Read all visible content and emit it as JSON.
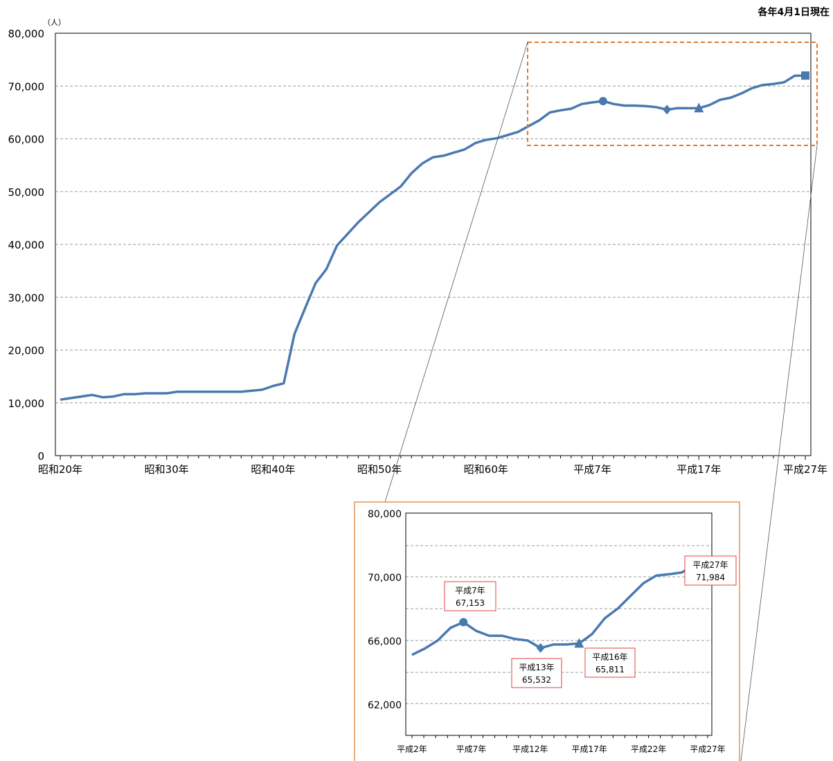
{
  "note": "各年4月1日現在",
  "colors": {
    "series": "#4a79b0",
    "grid": "#999999",
    "highlight": "#e0782a",
    "label_border": "#e04040"
  },
  "chart_data": [
    {
      "type": "line",
      "unit_label": "（人）",
      "ylim": [
        0,
        80000
      ],
      "yticks": [
        0,
        10000,
        20000,
        30000,
        40000,
        50000,
        60000,
        70000,
        80000
      ],
      "ytick_labels": [
        "0",
        "10,000",
        "20,000",
        "30,000",
        "40,000",
        "50,000",
        "60,000",
        "70,000",
        "80,000"
      ],
      "grid": "dashed horizontal",
      "x_tick_labels": [
        "昭和20年",
        "昭和30年",
        "昭和40年",
        "昭和50年",
        "昭和60年",
        "平成7年",
        "平成17年",
        "平成27年"
      ],
      "x_tick_index": [
        0,
        10,
        20,
        30,
        40,
        50,
        60,
        70
      ],
      "series": [
        {
          "values": [
            10600,
            10900,
            11200,
            11500,
            11050,
            11200,
            11650,
            11650,
            11800,
            11800,
            11800,
            12100,
            12100,
            12100,
            12100,
            12100,
            12100,
            12100,
            12300,
            12500,
            13200,
            13700,
            23000,
            27900,
            32700,
            35300,
            39800,
            42000,
            44200,
            46100,
            48000,
            49500,
            51000,
            53500,
            55300,
            56500,
            56800,
            57400,
            58000,
            59200,
            59800,
            60100,
            60700,
            61300,
            62400,
            63500,
            65000,
            65400,
            65700,
            66600,
            66900,
            67153,
            66600,
            66300,
            66300,
            66200,
            66000,
            65532,
            65811,
            65800,
            65811,
            66400,
            67400,
            67800,
            68600,
            69600,
            70200,
            70400,
            70700,
            71950,
            71984
          ]
        }
      ],
      "markers": [
        {
          "index": 51,
          "shape": "circle"
        },
        {
          "index": 57,
          "shape": "diamond"
        },
        {
          "index": 60,
          "shape": "triangle"
        },
        {
          "index": 70,
          "shape": "square"
        }
      ]
    },
    {
      "type": "line",
      "yticks": [
        62000,
        66000,
        70000,
        80000
      ],
      "ytick_labels": [
        "62,000",
        "66,000",
        "70,000",
        "80,000"
      ],
      "x_tick_labels": [
        "平成2年",
        "平成7年",
        "平成12年",
        "平成17年",
        "平成22年",
        "平成27年"
      ],
      "series": [
        {
          "values": [
            65100,
            65500,
            66000,
            66800,
            67153,
            66600,
            66300,
            66300,
            66100,
            66000,
            65532,
            65750,
            65750,
            65811,
            66400,
            67400,
            68000,
            68800,
            69600,
            70200,
            70400,
            70700,
            71950,
            71984
          ]
        }
      ],
      "callouts": [
        {
          "title": "平成7年",
          "value": "67,153"
        },
        {
          "title": "平成13年",
          "value": "65,532"
        },
        {
          "title": "平成16年",
          "value": "65,811"
        },
        {
          "title": "平成27年",
          "value": "71,984"
        }
      ]
    }
  ]
}
